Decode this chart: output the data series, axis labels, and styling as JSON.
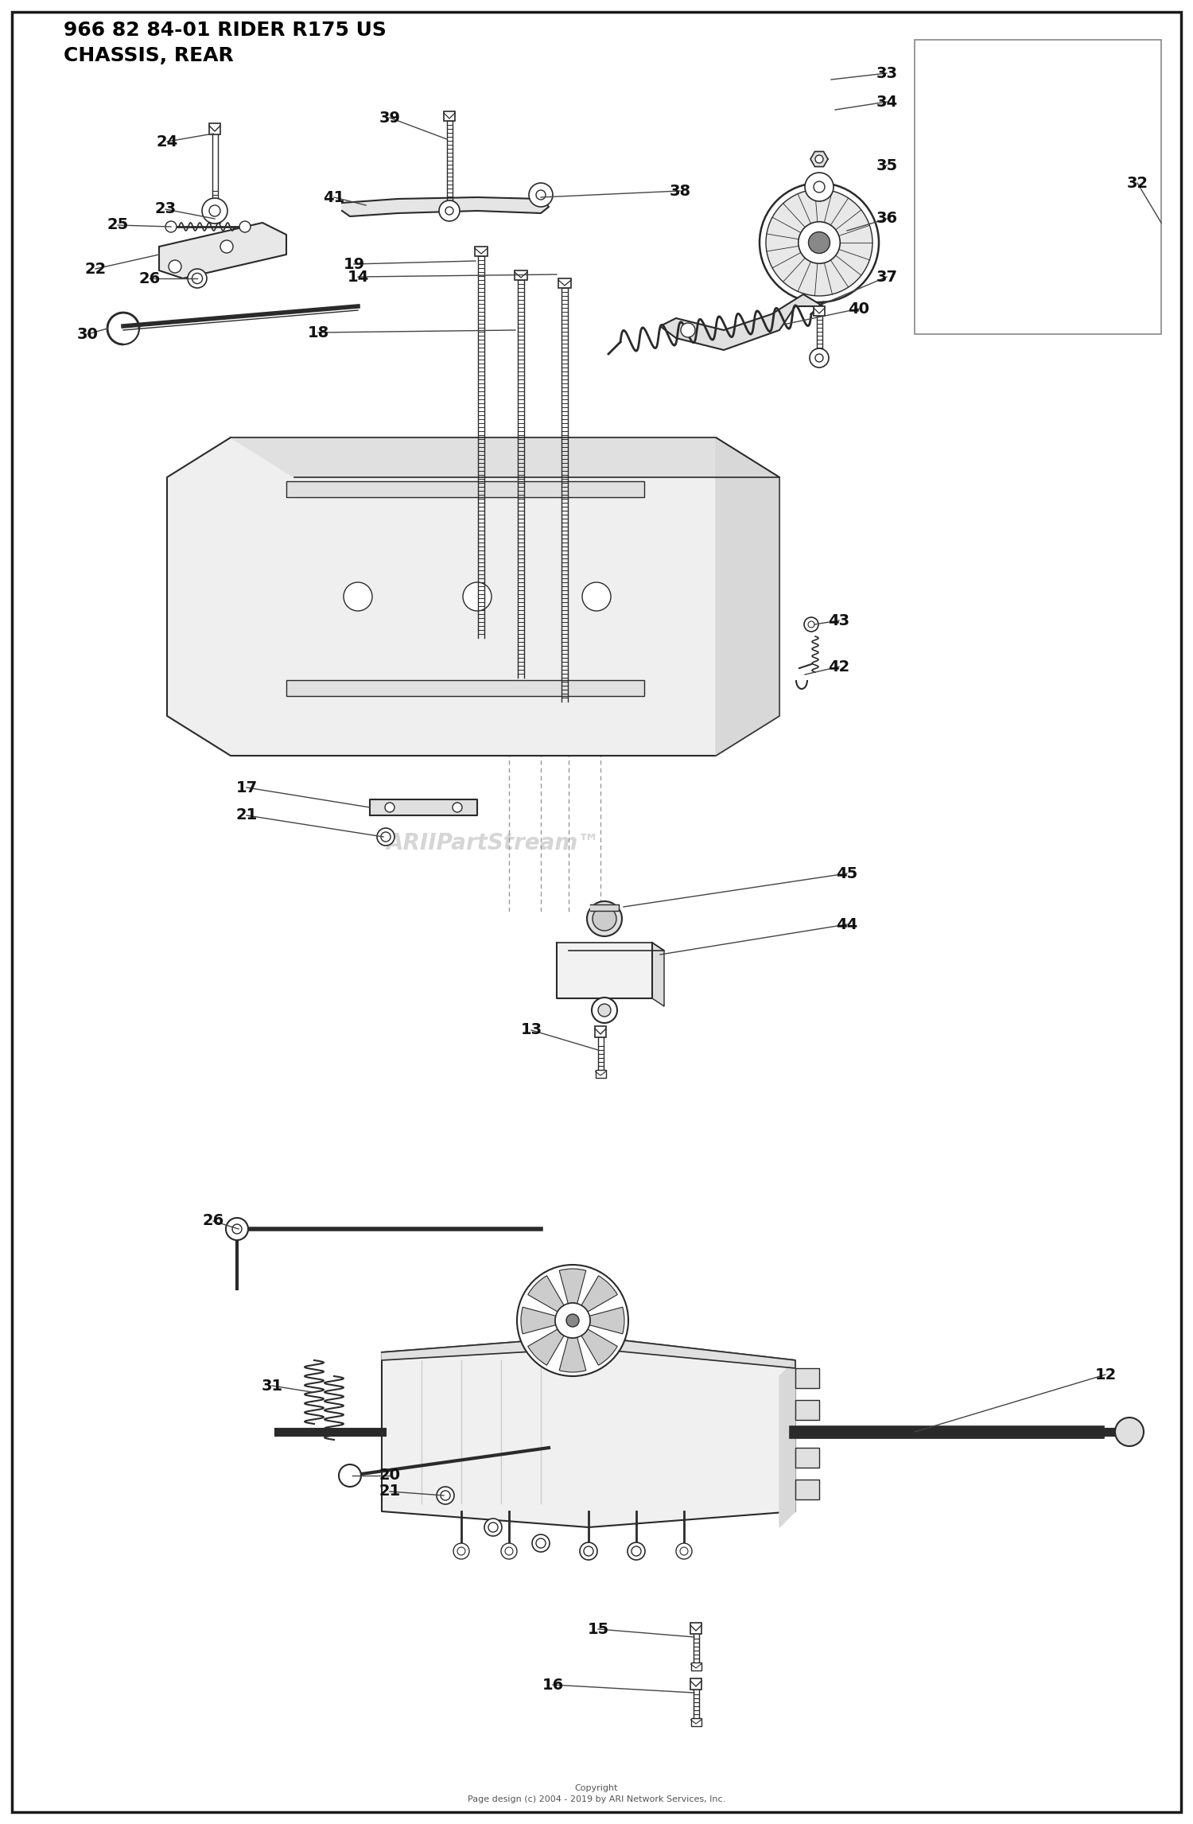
{
  "title_line1": "966 82 84-01 RIDER R175 US",
  "title_line2": "CHASSIS, REAR",
  "background_color": "#ffffff",
  "border_color": "#1a1a1a",
  "dc": "#2a2a2a",
  "lc": "#aaaaaa",
  "watermark": "ARIIPartStream™",
  "copyright": "Copyright\nPage design (c) 2004 - 2019 by ARI Network Services, Inc.",
  "fig_width": 15.0,
  "fig_height": 22.93,
  "label_fontsize": 14,
  "title_fontsize": 18
}
